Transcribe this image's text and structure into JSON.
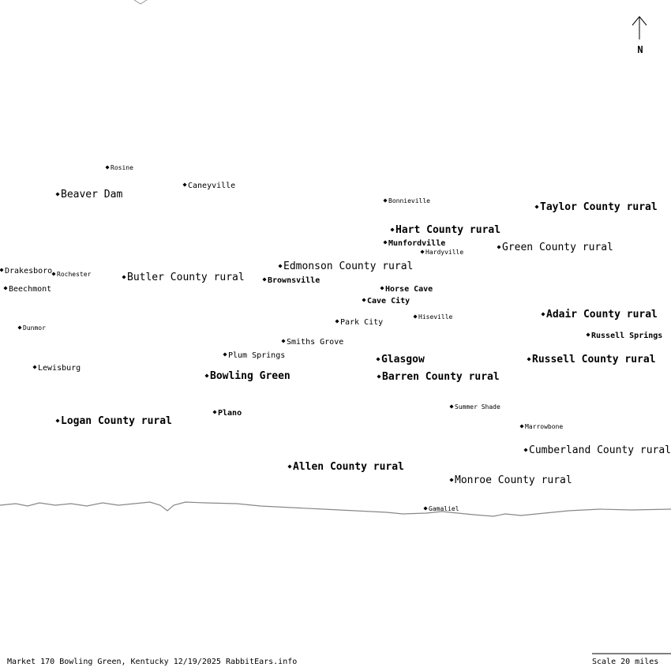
{
  "map": {
    "north": "N",
    "places": [
      {
        "name": "Rosine"
      },
      {
        "name": "Caneyville"
      },
      {
        "name": "Beaver Dam"
      },
      {
        "name": "Bonnieville"
      },
      {
        "name": "Taylor County rural"
      },
      {
        "name": "Hart County rural"
      },
      {
        "name": "Munfordville"
      },
      {
        "name": "Hardyville"
      },
      {
        "name": "Green County rural"
      },
      {
        "name": "Edmonson County rural"
      },
      {
        "name": "Drakesboro"
      },
      {
        "name": "Rochester"
      },
      {
        "name": "Butler County rural"
      },
      {
        "name": "Brownsville"
      },
      {
        "name": "Beechmont"
      },
      {
        "name": "Horse Cave"
      },
      {
        "name": "Cave City"
      },
      {
        "name": "Adair County rural"
      },
      {
        "name": "Hiseville"
      },
      {
        "name": "Park City"
      },
      {
        "name": "Dunmor"
      },
      {
        "name": "Russell Springs"
      },
      {
        "name": "Smiths Grove"
      },
      {
        "name": "Plum Springs"
      },
      {
        "name": "Glasgow"
      },
      {
        "name": "Russell County rural"
      },
      {
        "name": "Lewisburg"
      },
      {
        "name": "Bowling Green"
      },
      {
        "name": "Barren County rural"
      },
      {
        "name": "Summer Shade"
      },
      {
        "name": "Plano"
      },
      {
        "name": "Logan County rural"
      },
      {
        "name": "Marrowbone"
      },
      {
        "name": "Cumberland County rural"
      },
      {
        "name": "Allen County rural"
      },
      {
        "name": "Monroe County rural"
      },
      {
        "name": "Gamaliel"
      }
    ],
    "footer": "Market 170 Bowling Green, Kentucky 12/19/2025 RabbitEars.info",
    "scale": "Scale 20 miles"
  }
}
